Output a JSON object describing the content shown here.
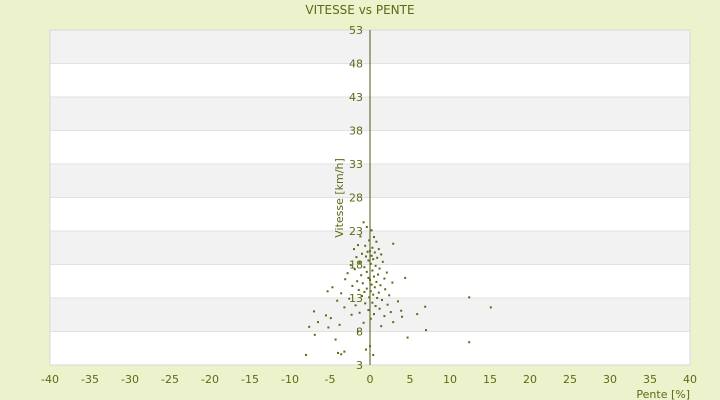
{
  "chart_data": {
    "type": "scatter",
    "title": "VITESSE vs PENTE",
    "xlabel": "Pente [%]",
    "ylabel": "Vitesse [km/h]",
    "xlim": [
      -40,
      40
    ],
    "ylim": [
      3,
      53
    ],
    "x_ticks": [
      "-40",
      "-35",
      "-30",
      "-25",
      "-20",
      "-15",
      "-10",
      "-5",
      "0",
      "5",
      "10",
      "15",
      "20",
      "25",
      "30",
      "35",
      "40"
    ],
    "y_ticks": [
      "3",
      "8",
      "13",
      "18",
      "23",
      "28",
      "33",
      "38",
      "43",
      "48",
      "53"
    ],
    "grid": true,
    "legend": "none",
    "colors": {
      "background": "#ecf2cc",
      "plot_band_light": "#ffffff",
      "plot_band_dark": "#f2f2f2",
      "axis": "#4d5a10",
      "point": "#5a6b14",
      "text": "#5a6b14"
    },
    "points": [
      [
        -0.8,
        24.3
      ],
      [
        -0.4,
        23.6
      ],
      [
        0.2,
        23.1
      ],
      [
        -1.2,
        22.2
      ],
      [
        0.5,
        22.1
      ],
      [
        -0.1,
        21.6
      ],
      [
        0.8,
        21.4
      ],
      [
        2.9,
        21.1
      ],
      [
        -1.5,
        20.9
      ],
      [
        -0.6,
        20.8
      ],
      [
        0.3,
        20.5
      ],
      [
        1.1,
        20.3
      ],
      [
        -2.0,
        20.3
      ],
      [
        0.0,
        20.0
      ],
      [
        -0.3,
        19.9
      ],
      [
        0.6,
        19.8
      ],
      [
        -1.0,
        19.6
      ],
      [
        1.4,
        19.5
      ],
      [
        0.2,
        19.3
      ],
      [
        -0.5,
        19.2
      ],
      [
        0.9,
        19.0
      ],
      [
        -1.7,
        19.1
      ],
      [
        0.4,
        18.8
      ],
      [
        -0.2,
        18.6
      ],
      [
        1.6,
        18.4
      ],
      [
        -1.3,
        18.3
      ],
      [
        0.1,
        18.1
      ],
      [
        -2.4,
        17.9
      ],
      [
        0.7,
        17.8
      ],
      [
        -0.7,
        17.6
      ],
      [
        1.2,
        17.4
      ],
      [
        -1.9,
        17.3
      ],
      [
        0.3,
        17.1
      ],
      [
        -0.4,
        16.9
      ],
      [
        2.1,
        16.8
      ],
      [
        -2.8,
        16.7
      ],
      [
        1.0,
        16.5
      ],
      [
        -1.1,
        16.4
      ],
      [
        0.5,
        16.2
      ],
      [
        -0.2,
        16.0
      ],
      [
        1.8,
        15.9
      ],
      [
        -3.1,
        15.8
      ],
      [
        0.0,
        15.7
      ],
      [
        4.4,
        16.0
      ],
      [
        -1.6,
        15.5
      ],
      [
        0.8,
        15.4
      ],
      [
        2.8,
        15.3
      ],
      [
        -0.9,
        15.2
      ],
      [
        0.2,
        15.0
      ],
      [
        1.3,
        14.9
      ],
      [
        -2.2,
        14.8
      ],
      [
        -4.7,
        14.6
      ],
      [
        0.6,
        14.6
      ],
      [
        -0.4,
        14.4
      ],
      [
        1.9,
        14.3
      ],
      [
        -1.4,
        14.2
      ],
      [
        -5.3,
        14.0
      ],
      [
        0.1,
        14.0
      ],
      [
        -0.7,
        13.9
      ],
      [
        1.1,
        13.8
      ],
      [
        -3.6,
        13.7
      ],
      [
        0.4,
        13.5
      ],
      [
        2.4,
        13.4
      ],
      [
        -1.0,
        13.3
      ],
      [
        -0.1,
        13.1
      ],
      [
        12.4,
        13.1
      ],
      [
        0.9,
        13.0
      ],
      [
        -2.6,
        12.9
      ],
      [
        1.5,
        12.7
      ],
      [
        -4.1,
        12.6
      ],
      [
        3.5,
        12.5
      ],
      [
        0.3,
        12.3
      ],
      [
        -0.6,
        12.2
      ],
      [
        2.2,
        12.0
      ],
      [
        -1.8,
        11.9
      ],
      [
        0.7,
        11.8
      ],
      [
        6.9,
        11.7
      ],
      [
        -3.2,
        11.6
      ],
      [
        15.1,
        11.6
      ],
      [
        1.2,
        11.4
      ],
      [
        -0.2,
        11.2
      ],
      [
        3.9,
        11.1
      ],
      [
        -7.0,
        11.0
      ],
      [
        2.6,
        10.9
      ],
      [
        -1.3,
        10.8
      ],
      [
        0.5,
        10.6
      ],
      [
        5.9,
        10.6
      ],
      [
        -2.3,
        10.5
      ],
      [
        -5.5,
        10.4
      ],
      [
        1.8,
        10.3
      ],
      [
        4.0,
        10.2
      ],
      [
        -4.9,
        10.0
      ],
      [
        0.1,
        9.9
      ],
      [
        -6.5,
        9.4
      ],
      [
        2.9,
        9.4
      ],
      [
        -0.8,
        9.3
      ],
      [
        -3.8,
        9.0
      ],
      [
        -7.6,
        8.7
      ],
      [
        1.4,
        8.8
      ],
      [
        -5.2,
        8.6
      ],
      [
        7.0,
        8.2
      ],
      [
        -1.5,
        8.0
      ],
      [
        -6.9,
        7.5
      ],
      [
        4.7,
        7.1
      ],
      [
        -4.3,
        6.8
      ],
      [
        12.4,
        6.4
      ],
      [
        0.0,
        5.8
      ],
      [
        -0.5,
        5.3
      ],
      [
        -3.2,
        5.0
      ],
      [
        -4.0,
        4.8
      ],
      [
        -8.0,
        4.5
      ],
      [
        -3.6,
        4.6
      ],
      [
        0.4,
        4.5
      ]
    ]
  }
}
